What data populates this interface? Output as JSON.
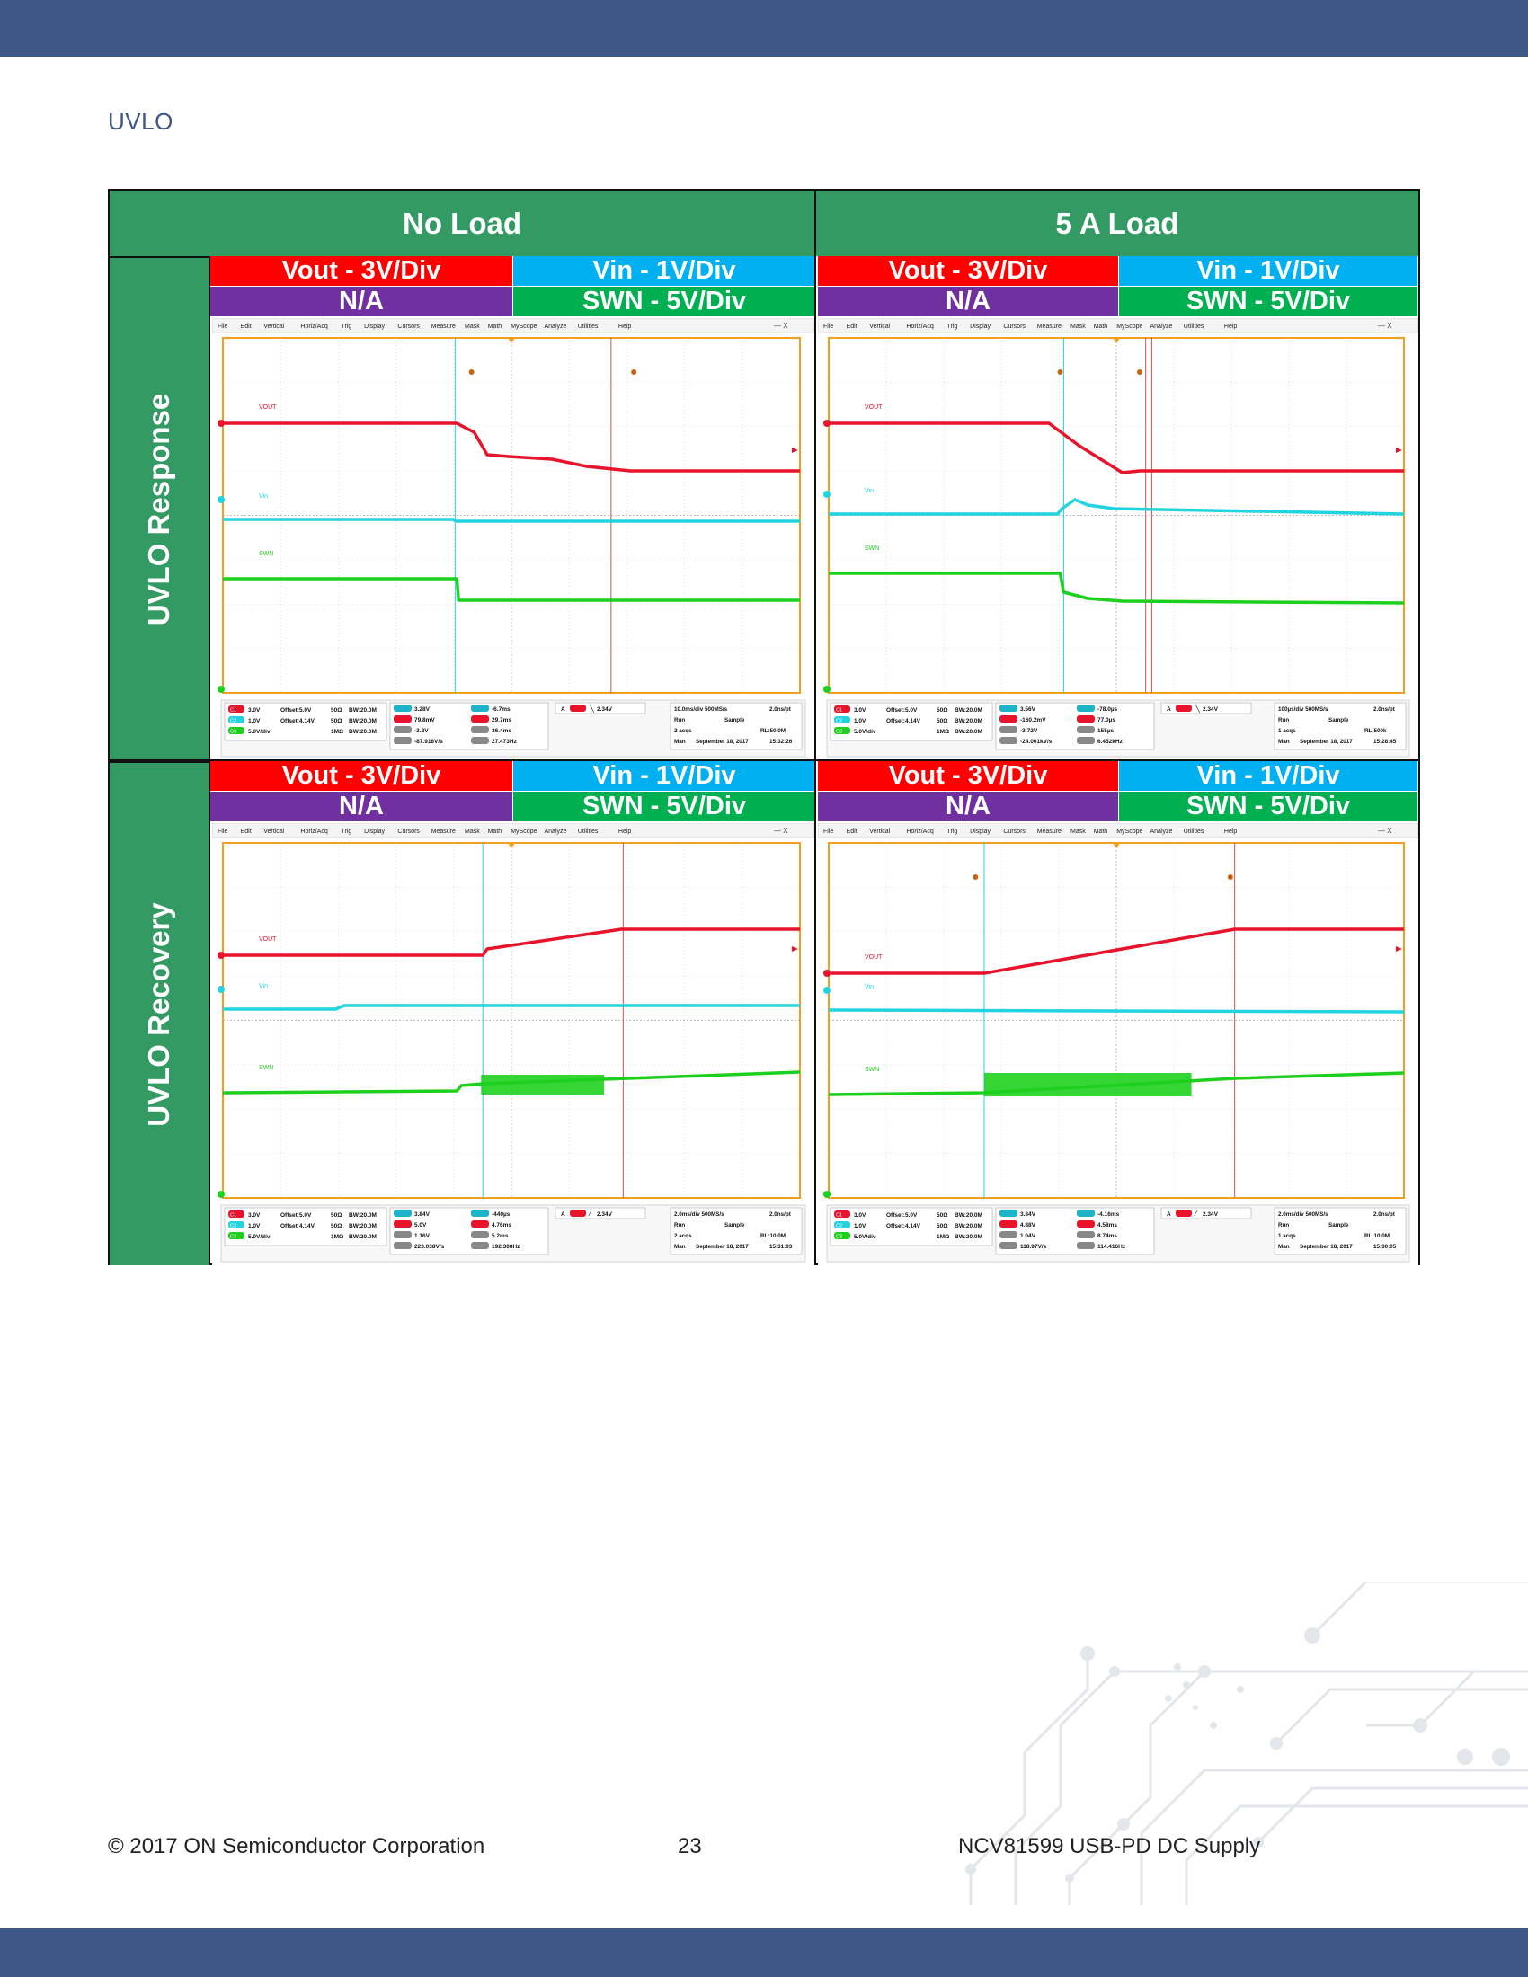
{
  "heading": "UVLO",
  "columns": [
    "No Load",
    "5 A Load"
  ],
  "rows": [
    "UVLO Response",
    "UVLO Recovery"
  ],
  "channel_labels": {
    "vout": "Vout - 3V/Div",
    "vin": "Vin - 1V/Div",
    "na": "N/A",
    "swn": "SWN - 5V/Div"
  },
  "scope_common": {
    "menu": [
      "File",
      "Edit",
      "Vertical",
      "Horiz/Acq",
      "Trig",
      "Display",
      "Cursors",
      "Measure",
      "Mask",
      "Math",
      "MyScope",
      "Analyze",
      "Utilities",
      "Help"
    ],
    "trace_labels": [
      "VOUT",
      "Vin",
      "SWN"
    ],
    "channels": [
      {
        "id": "C1",
        "scale": "3.0V",
        "offset": "Offset:5.0V",
        "imp": "50Ω",
        "bw": "BW:20.0M"
      },
      {
        "id": "C2",
        "scale": "1.0V",
        "offset": "Offset:4.14V",
        "imp": "50Ω",
        "bw": "BW:20.0M"
      },
      {
        "id": "C3",
        "scale": "5.0V/div",
        "offset": "",
        "imp": "1MΩ",
        "bw": "BW:20.0M"
      }
    ],
    "colors": {
      "vout": "#e8142c",
      "vin": "#22d3e0",
      "swn": "#1ed01e",
      "grid_border": "#f0a020"
    }
  },
  "scopes": [
    {
      "id": "response-noload",
      "cursors": {
        "a1": "3.28V",
        "a2": "79.8mV",
        "dv": "-3.2V",
        "dvdt": "-87.918V/s",
        "t1": "-6.7ms",
        "t2": "29.7ms",
        "dt": "36.4ms",
        "inv": "27.473Hz"
      },
      "trigger": "2.34V",
      "trigger_dir": "fall",
      "horiz": [
        "10.0ms/div 500MS/s",
        "2.0ns/pt"
      ],
      "acq": [
        "Run",
        "Sample"
      ],
      "acqs": "2 acqs",
      "rl": "RL:50.0M",
      "mode": "Man",
      "date": "September 18, 2017",
      "time": "15:32:26"
    },
    {
      "id": "response-5a",
      "cursors": {
        "a1": "3.56V",
        "a2": "-160.2mV",
        "dv": "-3.72V",
        "dvdt": "-24.001kV/s",
        "t1": "-78.0µs",
        "t2": "77.0µs",
        "dt": "155µs",
        "inv": "6.452kHz"
      },
      "trigger": "2.34V",
      "trigger_dir": "fall",
      "horiz": [
        "100µs/div 500MS/s",
        "2.0ns/pt"
      ],
      "acq": [
        "Run",
        "Sample"
      ],
      "acqs": "1 acqs",
      "rl": "RL:500k",
      "mode": "Man",
      "date": "September 18, 2017",
      "time": "15:28:45"
    },
    {
      "id": "recovery-noload",
      "cursors": {
        "a1": "3.84V",
        "a2": "5.0V",
        "dv": "1.16V",
        "dvdt": "223.038V/s",
        "t1": "-440µs",
        "t2": "4.76ms",
        "dt": "5.2ms",
        "inv": "192.308Hz"
      },
      "trigger": "2.34V",
      "trigger_dir": "rise",
      "horiz": [
        "2.0ms/div 500MS/s",
        "2.0ns/pt"
      ],
      "acq": [
        "Run",
        "Sample"
      ],
      "acqs": "2 acqs",
      "rl": "RL:10.0M",
      "mode": "Man",
      "date": "September 18, 2017",
      "time": "15:31:03"
    },
    {
      "id": "recovery-5a",
      "cursors": {
        "a1": "3.84V",
        "a2": "4.88V",
        "dv": "1.04V",
        "dvdt": "118.97V/s",
        "t1": "-4.16ms",
        "t2": "4.58ms",
        "dt": "8.74ms",
        "inv": "114.416Hz"
      },
      "trigger": "2.34V",
      "trigger_dir": "rise",
      "horiz": [
        "2.0ms/div 500MS/s",
        "2.0ns/pt"
      ],
      "acq": [
        "Run",
        "Sample"
      ],
      "acqs": "1 acqs",
      "rl": "RL:10.0M",
      "mode": "Man",
      "date": "September 18, 2017",
      "time": "15:30:05"
    }
  ],
  "footer": {
    "copyright": "© 2017 ON Semiconductor Corporation",
    "page": "23",
    "doc": "NCV81599 USB-PD DC Supply"
  }
}
